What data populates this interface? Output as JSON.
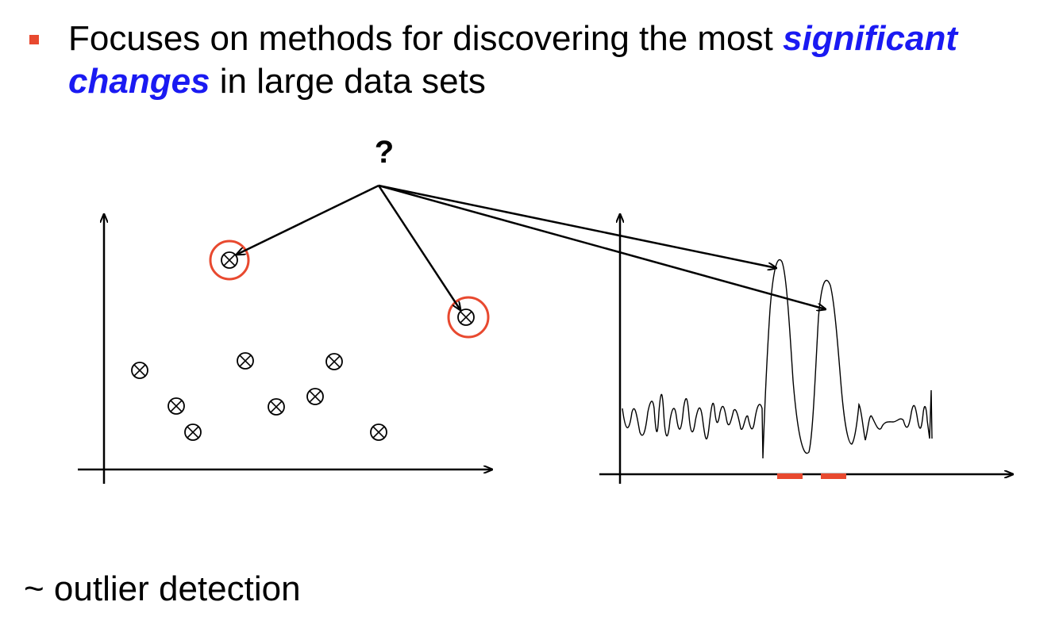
{
  "slide": {
    "bullet_text_1": "Focuses on methods for discovering the most ",
    "highlight": "significant changes",
    "bullet_text_2": " in large data sets",
    "question_mark": "?",
    "footer": "~ outlier detection"
  },
  "colors": {
    "highlight": "#1a1af2",
    "accent_red": "#e8492f",
    "ink": "#000000"
  },
  "icons": {
    "bullet": "square-bullet-icon",
    "point": "circle-cross-icon"
  }
}
